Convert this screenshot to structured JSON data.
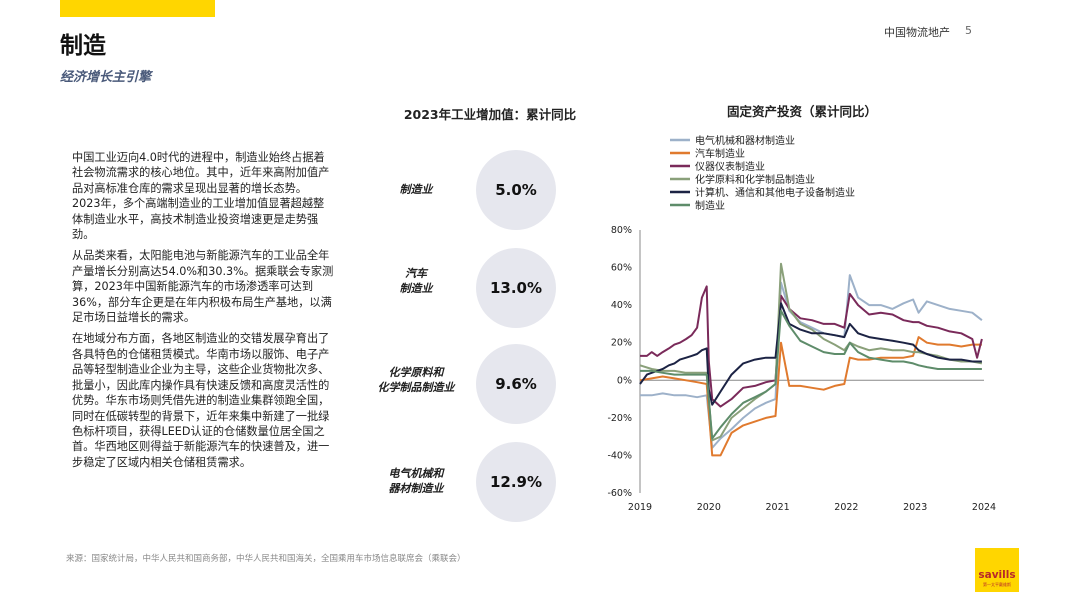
{
  "header": {
    "brand": "中国物流地产",
    "page_number": "5",
    "title": "制造",
    "subtitle": "经济增长主引擎",
    "accent_color": "#FFD600"
  },
  "body": {
    "paragraphs": [
      "中国工业迈向4.0时代的进程中，制造业始终占据着社会物流需求的核心地位。其中，近年来高附加值产品对高标准仓库的需求呈现出显著的增长态势。2023年，多个高端制造业的工业增加值显著超越整体制造业水平，高技术制造业投资增速更是走势强劲。",
      "从品类来看，太阳能电池与新能源汽车的工业品全年产量增长分别高达54.0%和30.3%。据乘联会专家测算，2023年中国新能源汽车的市场渗透率可达到36%，部分车企更是在年内积极布局生产基地，以满足市场日益增长的需求。",
      "在地域分布方面，各地区制造业的交错发展孕育出了各具特色的仓储租赁模式。华南市场以服饰、电子产品等轻型制造业企业为主导，这些企业货物批次多、批量小，因此库内操作具有快速反馈和高度灵活性的优势。华东市场则凭借先进的制造业集群领跑全国，同时在低碳转型的背景下，近年来集中新建了一批绿色标杆项目，获得LEED认证的仓储数量位居全国之首。华西地区则得益于新能源汽车的快速普及，进一步稳定了区域内相关仓储租赁需求。"
    ]
  },
  "kpis": {
    "heading": "2023年工业增加值：累计同比",
    "items": [
      {
        "label": "制造业",
        "value": "5.0%"
      },
      {
        "label": "汽车\n制造业",
        "value": "13.0%"
      },
      {
        "label": "化学原料和\n化学制品制造业",
        "value": "9.6%"
      },
      {
        "label": "电气机械和\n器材制造业",
        "value": "12.9%"
      }
    ]
  },
  "chart_data": {
    "type": "line",
    "title": "固定资产投资（累计同比）",
    "xlabel": "",
    "ylabel": "",
    "x_ticks": [
      "2019",
      "2020",
      "2021",
      "2022",
      "2023",
      "2024"
    ],
    "y_ticks": [
      "80%",
      "60%",
      "40%",
      "20%",
      "0%",
      "-20%",
      "-40%",
      "-60%"
    ],
    "ylim": [
      -60,
      80
    ],
    "xlim": [
      2019,
      2024
    ],
    "grid": false,
    "legend_position": "top",
    "series": [
      {
        "name": "电气机械和器材制造业",
        "color": "#9db1c9",
        "points": [
          [
            2019.0,
            -8
          ],
          [
            2019.17,
            -8
          ],
          [
            2019.33,
            -7
          ],
          [
            2019.5,
            -8
          ],
          [
            2019.67,
            -8
          ],
          [
            2019.83,
            -9
          ],
          [
            2019.97,
            -8
          ],
          [
            2020.05,
            -36
          ],
          [
            2020.17,
            -31
          ],
          [
            2020.33,
            -26
          ],
          [
            2020.5,
            -20
          ],
          [
            2020.67,
            -15
          ],
          [
            2020.83,
            -12
          ],
          [
            2020.97,
            -10
          ],
          [
            2021.05,
            52
          ],
          [
            2021.17,
            37
          ],
          [
            2021.33,
            31
          ],
          [
            2021.5,
            28
          ],
          [
            2021.67,
            25
          ],
          [
            2021.83,
            24
          ],
          [
            2021.97,
            23
          ],
          [
            2022.05,
            56
          ],
          [
            2022.17,
            44
          ],
          [
            2022.33,
            40
          ],
          [
            2022.5,
            40
          ],
          [
            2022.67,
            38
          ],
          [
            2022.83,
            41
          ],
          [
            2022.97,
            43
          ],
          [
            2023.05,
            36
          ],
          [
            2023.17,
            42
          ],
          [
            2023.33,
            40
          ],
          [
            2023.5,
            38
          ],
          [
            2023.67,
            37
          ],
          [
            2023.83,
            36
          ],
          [
            2023.97,
            32
          ]
        ]
      },
      {
        "name": "汽车制造业",
        "color": "#e07a2e",
        "points": [
          [
            2019.0,
            0
          ],
          [
            2019.17,
            1
          ],
          [
            2019.33,
            2
          ],
          [
            2019.5,
            1
          ],
          [
            2019.67,
            0
          ],
          [
            2019.83,
            -1
          ],
          [
            2019.97,
            -2
          ],
          [
            2020.05,
            -40
          ],
          [
            2020.17,
            -40
          ],
          [
            2020.33,
            -28
          ],
          [
            2020.5,
            -24
          ],
          [
            2020.67,
            -22
          ],
          [
            2020.83,
            -20
          ],
          [
            2020.97,
            -19
          ],
          [
            2021.05,
            20
          ],
          [
            2021.17,
            -3
          ],
          [
            2021.33,
            -3
          ],
          [
            2021.5,
            -4
          ],
          [
            2021.67,
            -5
          ],
          [
            2021.83,
            -3
          ],
          [
            2021.97,
            -2
          ],
          [
            2022.05,
            12
          ],
          [
            2022.17,
            11
          ],
          [
            2022.33,
            11
          ],
          [
            2022.5,
            12
          ],
          [
            2022.67,
            12
          ],
          [
            2022.83,
            12
          ],
          [
            2022.97,
            13
          ],
          [
            2023.05,
            23
          ],
          [
            2023.17,
            20
          ],
          [
            2023.33,
            19
          ],
          [
            2023.5,
            19
          ],
          [
            2023.67,
            18
          ],
          [
            2023.83,
            19
          ],
          [
            2023.97,
            19
          ]
        ]
      },
      {
        "name": "仪器仪表制造业",
        "color": "#7a2a5a",
        "points": [
          [
            2019.0,
            13
          ],
          [
            2019.1,
            13
          ],
          [
            2019.17,
            15
          ],
          [
            2019.25,
            13
          ],
          [
            2019.33,
            15
          ],
          [
            2019.42,
            17
          ],
          [
            2019.5,
            19
          ],
          [
            2019.58,
            20
          ],
          [
            2019.67,
            22
          ],
          [
            2019.75,
            24
          ],
          [
            2019.83,
            28
          ],
          [
            2019.9,
            44
          ],
          [
            2019.97,
            50
          ],
          [
            2020.0,
            10
          ],
          [
            2020.05,
            -10
          ],
          [
            2020.17,
            -14
          ],
          [
            2020.33,
            -10
          ],
          [
            2020.5,
            -4
          ],
          [
            2020.67,
            -3
          ],
          [
            2020.83,
            -1
          ],
          [
            2020.97,
            0
          ],
          [
            2021.05,
            45
          ],
          [
            2021.17,
            38
          ],
          [
            2021.33,
            33
          ],
          [
            2021.5,
            32
          ],
          [
            2021.67,
            30
          ],
          [
            2021.83,
            30
          ],
          [
            2021.97,
            28
          ],
          [
            2022.05,
            46
          ],
          [
            2022.17,
            40
          ],
          [
            2022.33,
            35
          ],
          [
            2022.5,
            36
          ],
          [
            2022.67,
            35
          ],
          [
            2022.83,
            32
          ],
          [
            2022.97,
            31
          ],
          [
            2023.05,
            31
          ],
          [
            2023.17,
            29
          ],
          [
            2023.33,
            28
          ],
          [
            2023.5,
            26
          ],
          [
            2023.67,
            25
          ],
          [
            2023.83,
            22
          ],
          [
            2023.9,
            12
          ],
          [
            2023.97,
            22
          ]
        ]
      },
      {
        "name": "化学原料和化学制品制造业",
        "color": "#8aa07a",
        "points": [
          [
            2019.0,
            8
          ],
          [
            2019.17,
            6
          ],
          [
            2019.33,
            5
          ],
          [
            2019.5,
            5
          ],
          [
            2019.67,
            4
          ],
          [
            2019.83,
            4
          ],
          [
            2019.97,
            4
          ],
          [
            2020.05,
            -32
          ],
          [
            2020.17,
            -30
          ],
          [
            2020.33,
            -20
          ],
          [
            2020.5,
            -15
          ],
          [
            2020.67,
            -10
          ],
          [
            2020.83,
            -6
          ],
          [
            2020.97,
            -2
          ],
          [
            2021.05,
            62
          ],
          [
            2021.17,
            38
          ],
          [
            2021.33,
            30
          ],
          [
            2021.5,
            27
          ],
          [
            2021.67,
            22
          ],
          [
            2021.83,
            19
          ],
          [
            2021.97,
            16
          ],
          [
            2022.05,
            20
          ],
          [
            2022.17,
            18
          ],
          [
            2022.33,
            16
          ],
          [
            2022.5,
            17
          ],
          [
            2022.67,
            16
          ],
          [
            2022.83,
            16
          ],
          [
            2022.97,
            15
          ],
          [
            2023.05,
            15
          ],
          [
            2023.17,
            14
          ],
          [
            2023.33,
            13
          ],
          [
            2023.5,
            11
          ],
          [
            2023.67,
            10
          ],
          [
            2023.83,
            10
          ],
          [
            2023.97,
            9
          ]
        ]
      },
      {
        "name": "计算机、通信和其他电子设备制造业",
        "color": "#1c2344",
        "points": [
          [
            2019.0,
            -2
          ],
          [
            2019.1,
            3
          ],
          [
            2019.17,
            4
          ],
          [
            2019.25,
            5
          ],
          [
            2019.33,
            6
          ],
          [
            2019.42,
            8
          ],
          [
            2019.5,
            9
          ],
          [
            2019.58,
            11
          ],
          [
            2019.67,
            12
          ],
          [
            2019.75,
            13
          ],
          [
            2019.83,
            14
          ],
          [
            2019.9,
            16
          ],
          [
            2019.97,
            17
          ],
          [
            2020.0,
            -5
          ],
          [
            2020.05,
            -13
          ],
          [
            2020.17,
            -6
          ],
          [
            2020.33,
            3
          ],
          [
            2020.5,
            9
          ],
          [
            2020.67,
            11
          ],
          [
            2020.83,
            12
          ],
          [
            2020.97,
            12
          ],
          [
            2021.05,
            41
          ],
          [
            2021.17,
            30
          ],
          [
            2021.33,
            27
          ],
          [
            2021.5,
            25
          ],
          [
            2021.67,
            25
          ],
          [
            2021.83,
            24
          ],
          [
            2021.97,
            23
          ],
          [
            2022.05,
            30
          ],
          [
            2022.17,
            25
          ],
          [
            2022.33,
            23
          ],
          [
            2022.5,
            22
          ],
          [
            2022.67,
            21
          ],
          [
            2022.83,
            20
          ],
          [
            2022.97,
            19
          ],
          [
            2023.05,
            16
          ],
          [
            2023.17,
            14
          ],
          [
            2023.33,
            12
          ],
          [
            2023.5,
            11
          ],
          [
            2023.67,
            11
          ],
          [
            2023.83,
            10
          ],
          [
            2023.97,
            10
          ]
        ]
      },
      {
        "name": "制造业",
        "color": "#5e8c6a",
        "points": [
          [
            2019.0,
            5
          ],
          [
            2019.17,
            5
          ],
          [
            2019.33,
            4
          ],
          [
            2019.5,
            3
          ],
          [
            2019.67,
            3
          ],
          [
            2019.83,
            3
          ],
          [
            2019.97,
            3
          ],
          [
            2020.05,
            -31
          ],
          [
            2020.17,
            -25
          ],
          [
            2020.33,
            -18
          ],
          [
            2020.5,
            -12
          ],
          [
            2020.67,
            -9
          ],
          [
            2020.83,
            -6
          ],
          [
            2020.97,
            -2
          ],
          [
            2021.05,
            37
          ],
          [
            2021.17,
            29
          ],
          [
            2021.33,
            21
          ],
          [
            2021.5,
            18
          ],
          [
            2021.67,
            15
          ],
          [
            2021.83,
            14
          ],
          [
            2021.97,
            14
          ],
          [
            2022.05,
            20
          ],
          [
            2022.17,
            15
          ],
          [
            2022.33,
            12
          ],
          [
            2022.5,
            11
          ],
          [
            2022.67,
            10
          ],
          [
            2022.83,
            10
          ],
          [
            2022.97,
            9
          ],
          [
            2023.05,
            8
          ],
          [
            2023.17,
            7
          ],
          [
            2023.33,
            6
          ],
          [
            2023.5,
            6
          ],
          [
            2023.67,
            6
          ],
          [
            2023.83,
            6
          ],
          [
            2023.97,
            6
          ]
        ]
      }
    ]
  },
  "footer": {
    "source": "来源：国家统计局，中华人民共和国商务部，中华人民共和国海关，全国乘用车市场信息联席会（乘联会）",
    "logo_text": "savills",
    "logo_sub": "第一太平戴维斯"
  }
}
